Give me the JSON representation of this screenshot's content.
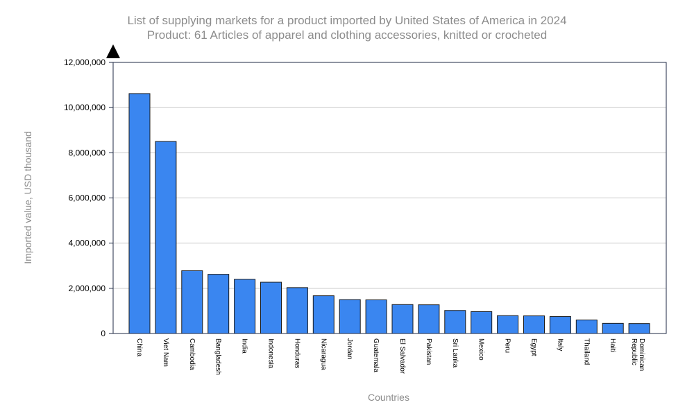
{
  "title_line1": "List of supplying markets for a product imported by United States of America in 2024",
  "title_line2": "Product: 61 Articles of apparel and clothing accessories, knitted or crocheted",
  "colors": {
    "bar": "#3a86f0",
    "bar_stroke": "#1a1a1a",
    "grid": "#c8c8c8",
    "axis": "#1f2a44",
    "text_muted": "#8c8c8c"
  },
  "chart_data": {
    "type": "bar",
    "xlabel": "Countries",
    "ylabel": "Imported value, USD thousand",
    "ylim": [
      0,
      12000000
    ],
    "yticks": [
      0,
      2000000,
      4000000,
      6000000,
      8000000,
      10000000,
      12000000
    ],
    "ytick_labels": [
      "0",
      "2,000,000",
      "4,000,000",
      "6,000,000",
      "8,000,000",
      "10,000,000",
      "12,000,000"
    ],
    "grid": true,
    "categories": [
      "China",
      "Viet Nam",
      "Cambodia",
      "Bangladesh",
      "India",
      "Indonesia",
      "Honduras",
      "Nicaragua",
      "Jordan",
      "Guatemala",
      "El Salvador",
      "Pakistan",
      "Sri Lanka",
      "Mexico",
      "Peru",
      "Egypt",
      "Italy",
      "Thailand",
      "Haiti",
      "Dominican Republic"
    ],
    "values": [
      10620000,
      8500000,
      2780000,
      2620000,
      2400000,
      2270000,
      2030000,
      1670000,
      1500000,
      1490000,
      1280000,
      1270000,
      1020000,
      970000,
      790000,
      780000,
      750000,
      600000,
      450000,
      440000
    ]
  }
}
